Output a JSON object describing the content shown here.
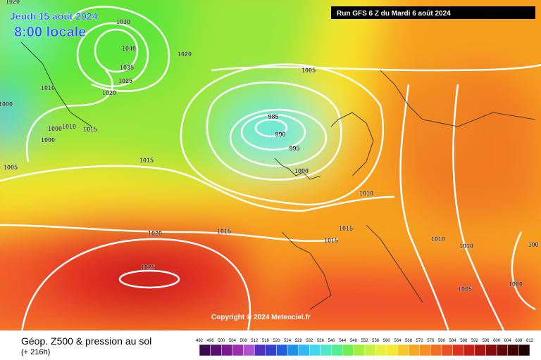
{
  "header": {
    "date": "Jeudi 15 août 2024",
    "time": "8:00 locale",
    "run": "Run GFS 6 Z du Mardi 6 août 2024"
  },
  "copyright": "Copyright © 2024 Meteociel.fr",
  "footer": {
    "title": "Géop. Z500 & pression au sol",
    "lead": "(+ 216h)"
  },
  "scale": [
    492,
    496,
    500,
    504,
    508,
    512,
    516,
    520,
    524,
    528,
    532,
    536,
    540,
    544,
    548,
    552,
    556,
    560,
    564,
    568,
    572,
    576,
    580,
    584,
    588,
    592,
    596,
    600,
    604,
    608,
    612
  ],
  "isobar_labels": [
    "1020",
    "1030",
    "1040",
    "1035",
    "1025",
    "1020",
    "1010",
    "1020",
    "1000",
    "1000",
    "1010",
    "1015",
    "1000",
    "1005",
    "1015",
    "985",
    "990",
    "995",
    "1000",
    "1005",
    "1010",
    "1015",
    "1015",
    "1015",
    "1020",
    "1025",
    "1010",
    "1010",
    "100",
    "1005",
    "1000"
  ]
}
